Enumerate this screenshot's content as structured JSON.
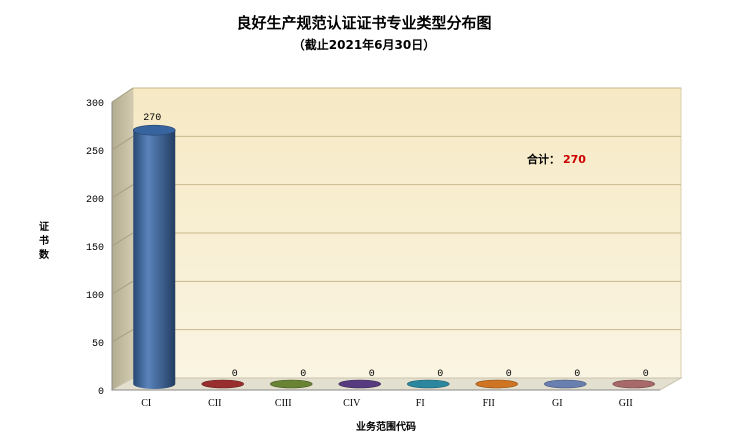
{
  "chart_data": {
    "type": "bar",
    "title": "良好生产规范认证证书专业类型分布图",
    "subtitle": "（截止2021年6月30日）",
    "xlabel": "业务范围代码",
    "ylabel": "证书数",
    "ylim": [
      0,
      300
    ],
    "yticks": [
      0,
      50,
      100,
      150,
      200,
      250,
      300
    ],
    "grid": true,
    "categories": [
      "CI",
      "CII",
      "CIII",
      "CIV",
      "FI",
      "FII",
      "GI",
      "GII"
    ],
    "values": [
      270,
      0,
      0,
      0,
      0,
      0,
      0,
      0
    ],
    "colors": [
      "#3d6eb0",
      "#a03030",
      "#6f8a38",
      "#5b3f86",
      "#2c8ea6",
      "#d97a24",
      "#6f86b8",
      "#b06e6e"
    ],
    "annotation": {
      "label": "合计：",
      "value": "270"
    }
  }
}
